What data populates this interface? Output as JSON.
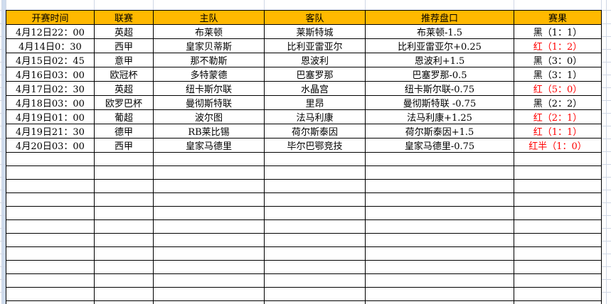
{
  "table": {
    "headers": [
      "开赛时间",
      "联赛",
      "主队",
      "客队",
      "推荐盘口",
      "赛果"
    ],
    "rows": [
      {
        "time": "4月12日22：00",
        "league": "英超",
        "home": "布莱顿",
        "away": "莱斯特城",
        "handicap": "布莱顿-1.5",
        "result": "黑（1：1）",
        "result_color": "#000000"
      },
      {
        "time": "4月14日0：30",
        "league": "西甲",
        "home": "皇家贝蒂斯",
        "away": "比利亚雷亚尔",
        "handicap": "比利亚雷亚尔+0.25",
        "result": "红（1：2）",
        "result_color": "#ff0000"
      },
      {
        "time": "4月15日02：45",
        "league": "意甲",
        "home": "那不勒斯",
        "away": "恩波利",
        "handicap": "恩波利+1.5",
        "result": "黑（3：0）",
        "result_color": "#000000"
      },
      {
        "time": "4月16日03：00",
        "league": "欧冠杯",
        "home": "多特蒙德",
        "away": "巴塞罗那",
        "handicap": "巴塞罗那-0.5",
        "result": "黑（3：1）",
        "result_color": "#000000"
      },
      {
        "time": "4月17日02：30",
        "league": "英超",
        "home": "纽卡斯尔联",
        "away": "水晶宫",
        "handicap": "纽卡斯尔联-0.75",
        "result": "红（5：0）",
        "result_color": "#ff0000"
      },
      {
        "time": "4月18日03：00",
        "league": "欧罗巴杯",
        "home": "曼彻斯特联",
        "away": "里昂",
        "handicap": "曼彻斯特联 -0.75",
        "result": "黑（2：2）",
        "result_color": "#000000"
      },
      {
        "time": "4月19日01：00",
        "league": "葡超",
        "home": "波尔图",
        "away": "法马利康",
        "handicap": "法马利康+1.25",
        "result": "红（2：1）",
        "result_color": "#ff0000"
      },
      {
        "time": "4月19日21：30",
        "league": "德甲",
        "home": "RB莱比锡",
        "away": "荷尔斯泰因",
        "handicap": "荷尔斯泰因+1.5",
        "result": "红（1：1）",
        "result_color": "#ff0000"
      },
      {
        "time": "4月20日03：00",
        "league": "西甲",
        "home": "皇家马德里",
        "away": "毕尔巴鄂竞技",
        "handicap": "皇家马德里-0.75",
        "result": "红半（1：0）",
        "result_color": "#ff0000"
      }
    ],
    "empty_row_count": 12
  },
  "colors": {
    "header_bg": "#ffb900",
    "result_red": "#ff0000",
    "result_black": "#000000",
    "cell_border": "#000000",
    "gridline": "#d0d7e5",
    "rowheader_strip": "#cfdcee"
  }
}
